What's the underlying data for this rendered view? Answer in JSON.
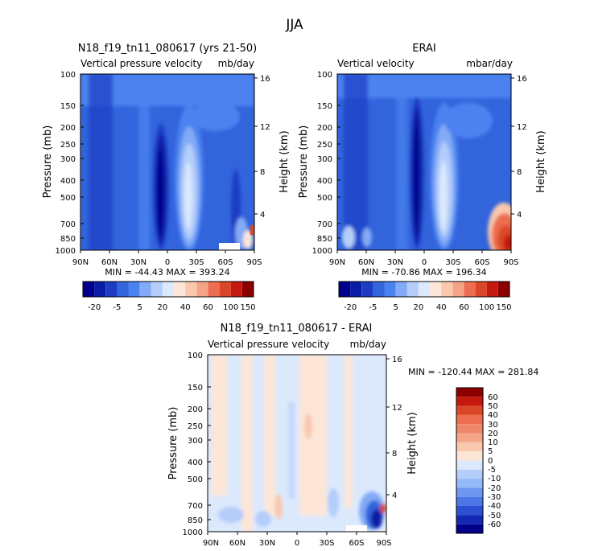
{
  "figure_title": "JJA",
  "chart_data": [
    {
      "type": "heatmap",
      "title": "N18_f19_tn11_080617 (yrs 21-50)",
      "subtitle_left": "Vertical pressure velocity",
      "subtitle_right": "mb/day",
      "xlabel": "",
      "ylabel": "Pressure (mb)",
      "y2label": "Height (km)",
      "x_ticks": [
        "90N",
        "60N",
        "30N",
        "0",
        "30S",
        "60S",
        "90S"
      ],
      "y_ticks": [
        "100",
        "150",
        "200",
        "250",
        "300",
        "400",
        "500",
        "700",
        "850",
        "1000"
      ],
      "y2_ticks": [
        "16",
        "12",
        "8",
        "4"
      ],
      "stats": "MIN = -44.43   MAX = 393.24",
      "colorbar_labels": [
        "-20",
        "-5",
        "5",
        "20",
        "40",
        "60",
        "100",
        "150"
      ],
      "colors": [
        "#00008a",
        "#0a1ea5",
        "#1e3cc3",
        "#3264dc",
        "#4b82f0",
        "#82aaf5",
        "#b4cdfa",
        "#dce9fd",
        "#fde6d7",
        "#fac8af",
        "#f5a587",
        "#eb6e50",
        "#dc4628",
        "#c3190f",
        "#8c0000"
      ]
    },
    {
      "type": "heatmap",
      "title": "ERAI",
      "subtitle_left": "Vertical velocity",
      "subtitle_right": "mbar/day",
      "xlabel": "",
      "ylabel": "Pressure (mb)",
      "y2label": "Height (km)",
      "x_ticks": [
        "90N",
        "60N",
        "30N",
        "0",
        "30S",
        "60S",
        "90S"
      ],
      "y_ticks": [
        "100",
        "150",
        "200",
        "250",
        "300",
        "400",
        "500",
        "700",
        "850",
        "1000"
      ],
      "y2_ticks": [
        "16",
        "12",
        "8",
        "4"
      ],
      "stats": "MIN = -70.86   MAX = 196.34",
      "colorbar_labels": [
        "-20",
        "-5",
        "5",
        "20",
        "40",
        "60",
        "100",
        "150"
      ],
      "colors": [
        "#00008a",
        "#0a1ea5",
        "#1e3cc3",
        "#3264dc",
        "#4b82f0",
        "#82aaf5",
        "#b4cdfa",
        "#dce9fd",
        "#fde6d7",
        "#fac8af",
        "#f5a587",
        "#eb6e50",
        "#dc4628",
        "#c3190f",
        "#8c0000"
      ]
    },
    {
      "type": "heatmap",
      "title": "N18_f19_tn11_080617 - ERAI",
      "subtitle_left": "Vertical pressure velocity",
      "subtitle_right": "mb/day",
      "xlabel": "",
      "ylabel": "Pressure (mb)",
      "y2label": "Height (km)",
      "x_ticks": [
        "90N",
        "60N",
        "30N",
        "0",
        "30S",
        "60S",
        "90S"
      ],
      "y_ticks": [
        "100",
        "150",
        "200",
        "250",
        "300",
        "400",
        "500",
        "700",
        "850",
        "1000"
      ],
      "y2_ticks": [
        "16",
        "12",
        "8",
        "4"
      ],
      "stats": "MIN = -120.44   MAX = 281.84",
      "colorbar_labels": [
        "60",
        "50",
        "40",
        "30",
        "20",
        "10",
        "5",
        "0",
        "-5",
        "-10",
        "-20",
        "-30",
        "-40",
        "-50",
        "-60"
      ],
      "colors": [
        "#8c0000",
        "#c3190f",
        "#dc4628",
        "#eb6e50",
        "#f0876a",
        "#f5a587",
        "#fac8af",
        "#fde6d7",
        "#dce9fd",
        "#b4cdfa",
        "#96b9f8",
        "#6e96f0",
        "#4b78e6",
        "#2d50d2",
        "#1428b4",
        "#00008a"
      ]
    }
  ]
}
